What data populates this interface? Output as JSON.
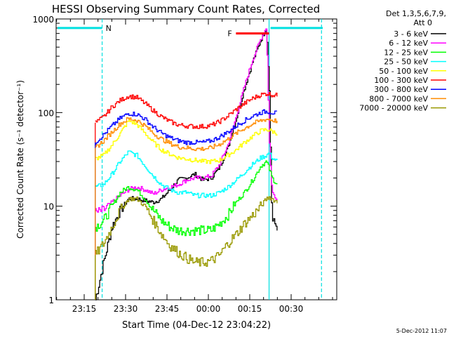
{
  "chart_data": {
    "type": "line",
    "title": "HESSI Observing Summary Count Rates, Corrected",
    "xlabel": "Start Time (04-Dec-12 23:04:22)",
    "ylabel": "Corrected Count Rate (s⁻¹ detector⁻¹)",
    "x_tick_labels": [
      "23:15",
      "23:30",
      "23:45",
      "00:00",
      "00:15",
      "00:30"
    ],
    "y_tick_labels": [
      "1",
      "10",
      "100",
      "1000"
    ],
    "y_scale": "log",
    "ylim": [
      1,
      1000
    ],
    "legend_header": [
      "Det 1,3,5,6,7,9,",
      "Att 0"
    ],
    "flags": [
      {
        "label": "N",
        "color": "#00e0e0",
        "x_start": "23:04",
        "x_end": "23:21:30",
        "level": 800
      },
      {
        "label": "F",
        "color": "#ff0000",
        "x_start": "00:10",
        "x_end": "00:22",
        "level": 700
      }
    ],
    "vertical_markers": [
      {
        "x": "23:21:30",
        "style": "dashed",
        "color": "#00e0e0"
      },
      {
        "x": "00:22",
        "style": "solid",
        "color": "#00e0e0"
      },
      {
        "x": "00:41",
        "style": "dashed",
        "color": "#00e0e0"
      }
    ],
    "series": [
      {
        "name": "3 - 6 keV",
        "color": "#000000",
        "x": [
          "23:19",
          "23:22",
          "23:25",
          "23:28",
          "23:31",
          "23:34",
          "23:37",
          "23:40",
          "23:43",
          "23:46",
          "23:49",
          "23:52",
          "23:55",
          "23:58",
          "00:01",
          "00:04",
          "00:07",
          "00:10",
          "00:13",
          "00:16",
          "00:19",
          "00:21",
          "00:22",
          "00:23",
          "00:25"
        ],
        "y": [
          1,
          2.5,
          6,
          9,
          12,
          12,
          11.5,
          11,
          12,
          15,
          19,
          20,
          22,
          19,
          20,
          26,
          42,
          85,
          180,
          350,
          600,
          800,
          200,
          7,
          6
        ]
      },
      {
        "name": "6 - 12 keV",
        "color": "#ff00ff",
        "x": [
          "23:19",
          "23:22",
          "23:25",
          "23:28",
          "23:31",
          "23:34",
          "23:37",
          "23:40",
          "23:43",
          "23:46",
          "23:49",
          "23:52",
          "23:55",
          "23:58",
          "00:01",
          "00:04",
          "00:07",
          "00:10",
          "00:13",
          "00:16",
          "00:19",
          "00:21",
          "00:22",
          "00:23",
          "00:25"
        ],
        "y": [
          8.5,
          9,
          11,
          13,
          15,
          16,
          15,
          13.5,
          15,
          16,
          17,
          19,
          20,
          20,
          21,
          28,
          45,
          90,
          190,
          370,
          620,
          820,
          50,
          14,
          12
        ]
      },
      {
        "name": "12 - 25 keV",
        "color": "#00ff00",
        "x": [
          "23:19",
          "23:22",
          "23:25",
          "23:28",
          "23:31",
          "23:34",
          "23:37",
          "23:40",
          "23:43",
          "23:46",
          "23:49",
          "23:52",
          "23:55",
          "23:58",
          "00:01",
          "00:04",
          "00:07",
          "00:10",
          "00:13",
          "00:16",
          "00:19",
          "00:21",
          "00:22",
          "00:23",
          "00:25"
        ],
        "y": [
          6,
          7,
          10,
          14,
          16,
          15,
          12,
          9,
          7,
          6,
          5.5,
          5.5,
          5.5,
          5.5,
          5.5,
          6.5,
          8,
          11,
          14,
          19,
          27,
          30,
          25,
          20,
          17
        ]
      },
      {
        "name": "25 - 50 keV",
        "color": "#00ffff",
        "x": [
          "23:19",
          "23:22",
          "23:25",
          "23:28",
          "23:31",
          "23:34",
          "23:37",
          "23:40",
          "23:43",
          "23:46",
          "23:49",
          "23:52",
          "23:55",
          "23:58",
          "00:01",
          "00:04",
          "00:07",
          "00:10",
          "00:13",
          "00:16",
          "00:19",
          "00:21",
          "00:22",
          "00:23",
          "00:25"
        ],
        "y": [
          16,
          17,
          22,
          30,
          38,
          35,
          27,
          21,
          17,
          15,
          14,
          14,
          13,
          13,
          13,
          14,
          16,
          19,
          23,
          28,
          33,
          35,
          37,
          33,
          30
        ]
      },
      {
        "name": "50 - 100 keV",
        "color": "#ffff00",
        "x": [
          "23:19",
          "23:22",
          "23:25",
          "23:28",
          "23:31",
          "23:34",
          "23:37",
          "23:40",
          "23:43",
          "23:46",
          "23:49",
          "23:52",
          "23:55",
          "23:58",
          "00:01",
          "00:04",
          "00:07",
          "00:10",
          "00:13",
          "00:16",
          "00:19",
          "00:21",
          "00:22",
          "00:23",
          "00:25"
        ],
        "y": [
          32,
          35,
          45,
          60,
          82,
          75,
          60,
          48,
          40,
          36,
          33,
          32,
          31,
          30,
          30,
          31,
          35,
          40,
          48,
          56,
          64,
          66,
          65,
          63,
          60
        ]
      },
      {
        "name": "100 - 300 keV",
        "color": "#ff0000",
        "x": [
          "23:19",
          "23:22",
          "23:25",
          "23:28",
          "23:31",
          "23:34",
          "23:37",
          "23:40",
          "23:43",
          "23:46",
          "23:49",
          "23:52",
          "23:55",
          "23:58",
          "00:01",
          "00:04",
          "00:07",
          "00:10",
          "00:13",
          "00:16",
          "00:19",
          "00:21",
          "00:22",
          "00:23",
          "00:25"
        ],
        "y": [
          78,
          90,
          115,
          135,
          150,
          145,
          125,
          105,
          90,
          80,
          74,
          72,
          71,
          71,
          73,
          80,
          92,
          108,
          125,
          142,
          155,
          160,
          158,
          155,
          152
        ]
      },
      {
        "name": "300 - 800 keV",
        "color": "#0000ff",
        "x": [
          "23:19",
          "23:22",
          "23:25",
          "23:28",
          "23:31",
          "23:34",
          "23:37",
          "23:40",
          "23:43",
          "23:46",
          "23:49",
          "23:52",
          "23:55",
          "23:58",
          "00:01",
          "00:04",
          "00:07",
          "00:10",
          "00:13",
          "00:16",
          "00:19",
          "00:21",
          "00:22",
          "00:23",
          "00:25"
        ],
        "y": [
          48,
          58,
          72,
          87,
          98,
          96,
          85,
          70,
          60,
          54,
          50,
          48,
          48,
          48,
          50,
          55,
          62,
          72,
          82,
          92,
          100,
          103,
          102,
          100,
          98
        ]
      },
      {
        "name": "800 - 7000 keV",
        "color": "#ff8c00",
        "x": [
          "23:19",
          "23:22",
          "23:25",
          "23:28",
          "23:31",
          "23:34",
          "23:37",
          "23:40",
          "23:43",
          "23:46",
          "23:49",
          "23:52",
          "23:55",
          "23:58",
          "00:01",
          "00:04",
          "00:07",
          "00:10",
          "00:13",
          "00:16",
          "00:19",
          "00:21",
          "00:22",
          "00:23",
          "00:25"
        ],
        "y": [
          42,
          50,
          62,
          76,
          86,
          83,
          72,
          60,
          52,
          47,
          43,
          42,
          41,
          41,
          42,
          46,
          52,
          60,
          68,
          76,
          82,
          85,
          85,
          83,
          81
        ]
      },
      {
        "name": "7000 - 20000 keV",
        "color": "#999900",
        "x": [
          "23:19",
          "23:22",
          "23:25",
          "23:28",
          "23:31",
          "23:34",
          "23:37",
          "23:40",
          "23:43",
          "23:46",
          "23:49",
          "23:52",
          "23:55",
          "23:58",
          "00:01",
          "00:04",
          "00:07",
          "00:10",
          "00:13",
          "00:16",
          "00:19",
          "00:21",
          "00:22",
          "00:23",
          "00:25"
        ],
        "y": [
          3,
          4,
          6,
          9,
          12,
          12,
          10,
          7,
          5,
          3.8,
          3.2,
          2.8,
          2.5,
          2.5,
          2.6,
          3,
          4,
          5,
          6.5,
          8,
          10,
          12,
          12.5,
          12,
          11
        ]
      }
    ]
  },
  "footer": {
    "date_stamp": "5-Dec-2012 11:07"
  }
}
